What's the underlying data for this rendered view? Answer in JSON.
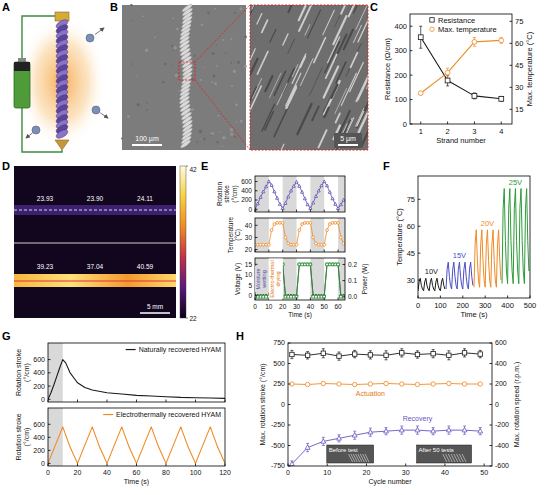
{
  "panel_letters": [
    "A",
    "B",
    "C",
    "D",
    "E",
    "F",
    "G",
    "H"
  ],
  "sem_images": {
    "scale_bars": [
      "100 µm",
      "5 µm"
    ]
  },
  "thermal_image": {
    "readings": [
      [
        "23.93",
        "23.90",
        "24.11"
      ],
      [
        "39.23",
        "37.04",
        "40.59"
      ]
    ],
    "scale_bar": "5 mm",
    "colorbar": {
      "range": [
        22,
        42
      ],
      "ticks": [
        22,
        42
      ]
    }
  },
  "chart_data": [
    {
      "type": "line",
      "x_label": "Strand number",
      "y_label": "Resistance (Ω/cm)",
      "y2_label": "Max. temperature (°C)",
      "x": [
        1,
        2,
        3,
        4
      ],
      "xlim": [
        0.6,
        4.4
      ],
      "xticks": [
        1,
        2,
        3,
        4
      ],
      "ylim": [
        0,
        450
      ],
      "yticks": [
        0,
        100,
        200,
        300,
        400
      ],
      "y2lim": [
        5,
        80
      ],
      "y2ticks": [
        15,
        30,
        45,
        60,
        75
      ],
      "legend": "upper center",
      "series": [
        {
          "name": "Resistance",
          "color": "#1a1a1a",
          "marker": "square",
          "values": [
            355,
            178,
            115,
            103
          ],
          "errors": [
            45,
            22,
            12,
            10
          ]
        },
        {
          "name": "Max. temperature",
          "color": "#f08a24",
          "marker": "circle",
          "axis": "y2",
          "values": [
            26,
            40,
            61,
            62
          ],
          "errors": [
            1,
            3,
            3,
            2
          ]
        }
      ]
    },
    {
      "type": "line",
      "y_label": "Rotation stroke (°/cm)",
      "x": [
        0,
        2,
        4,
        6,
        8,
        10,
        12,
        14,
        16,
        18,
        20,
        22,
        24,
        26,
        28,
        30,
        32,
        34,
        36,
        38,
        40,
        42,
        44,
        46,
        48,
        50,
        52,
        54,
        56,
        58,
        60,
        62,
        64
      ],
      "xlim": [
        0,
        65
      ],
      "xticks": [
        0,
        10,
        20,
        30,
        40,
        50,
        60
      ],
      "ylim": [
        -60,
        720
      ],
      "yticks": [
        0,
        200,
        400,
        600
      ],
      "tick_labels": "y",
      "shaded": [
        [
          0,
          10
        ],
        [
          20,
          30
        ],
        [
          40,
          50
        ],
        [
          60,
          65
        ]
      ],
      "series": [
        {
          "color": "#5b4fb0",
          "marker": "triangle",
          "values": [
            0,
            120,
            260,
            380,
            490,
            600,
            520,
            380,
            240,
            110,
            20,
            130,
            270,
            400,
            500,
            590,
            500,
            370,
            230,
            100,
            20,
            140,
            280,
            400,
            510,
            600,
            510,
            370,
            230,
            110,
            20,
            100,
            200
          ]
        }
      ]
    },
    {
      "type": "line",
      "y_label": "Temperature (°C)",
      "x": [
        0,
        2,
        4,
        6,
        8,
        10,
        12,
        14,
        16,
        18,
        20,
        22,
        24,
        26,
        28,
        30,
        32,
        34,
        36,
        38,
        40,
        42,
        44,
        46,
        48,
        50,
        52,
        54,
        56,
        58,
        60,
        62,
        64
      ],
      "xlim": [
        0,
        65
      ],
      "xticks": [
        0,
        10,
        20,
        30,
        40,
        50,
        60
      ],
      "ylim": [
        18,
        46
      ],
      "yticks": [
        20,
        30,
        40
      ],
      "tick_labels": "y",
      "shaded": [
        [
          0,
          10
        ],
        [
          20,
          30
        ],
        [
          40,
          50
        ],
        [
          60,
          65
        ]
      ],
      "series": [
        {
          "color": "#f08a24",
          "marker": "circle",
          "values": [
            24,
            24,
            24,
            24,
            24,
            24,
            36,
            41,
            42,
            42,
            42,
            30,
            25,
            24,
            24,
            24,
            36,
            41,
            42,
            42,
            42,
            30,
            25,
            24,
            24,
            24,
            36,
            41,
            42,
            42,
            42,
            30,
            25
          ]
        }
      ]
    },
    {
      "type": "line",
      "x_label": "Time (s)",
      "y_label": "Voltage (V)",
      "y2_label": "Power (W)",
      "x": [
        0,
        2,
        4,
        6,
        8,
        10,
        12,
        14,
        16,
        18,
        20,
        22,
        24,
        26,
        28,
        30,
        32,
        34,
        36,
        38,
        40,
        42,
        44,
        46,
        48,
        50,
        52,
        54,
        56,
        58,
        60,
        62,
        64
      ],
      "xlim": [
        0,
        65
      ],
      "xticks": [
        0,
        10,
        20,
        30,
        40,
        50,
        60
      ],
      "ylim": [
        -2,
        18
      ],
      "yticks": [
        0,
        5,
        10,
        15
      ],
      "y2lim": [
        -0.02,
        0.24
      ],
      "y2ticks": [
        {
          "value": 0,
          "label": "0.0"
        },
        0.1,
        0.2
      ],
      "shaded": [
        [
          0,
          10
        ],
        [
          20,
          30
        ],
        [
          40,
          50
        ],
        [
          60,
          65
        ]
      ],
      "annotations": [
        {
          "text": "Moisture wetting",
          "color": "#5b4fb0"
        },
        {
          "text": "Electro-thermal drying",
          "color": "#e07a14"
        }
      ],
      "series": [
        {
          "color": "#1a1a1a",
          "marker": "circle",
          "values": [
            0,
            0,
            0,
            0,
            0,
            0,
            15,
            15,
            15,
            15,
            15,
            0,
            0,
            0,
            0,
            0,
            15,
            15,
            15,
            15,
            15,
            0,
            0,
            0,
            0,
            0,
            15,
            15,
            15,
            15,
            15,
            0,
            0
          ]
        },
        {
          "color": "#2e9b3a",
          "marker": "square",
          "axis": "y2",
          "values": [
            0,
            0,
            0,
            0,
            0,
            0,
            0.2,
            0.2,
            0.2,
            0.2,
            0.2,
            0,
            0,
            0,
            0,
            0,
            0.2,
            0.2,
            0.2,
            0.2,
            0.2,
            0,
            0,
            0,
            0,
            0,
            0.2,
            0.2,
            0.2,
            0.2,
            0.2,
            0,
            0
          ]
        }
      ]
    },
    {
      "type": "line",
      "x_label": "Time (s)",
      "y_label": "Temperature (°C)",
      "xlim": [
        0,
        500
      ],
      "xticks": [
        0,
        100,
        200,
        300,
        400,
        500
      ],
      "ylim": [
        20,
        88
      ],
      "yticks": [
        30,
        45,
        60,
        75
      ],
      "series": [
        {
          "name": "10V",
          "color": "#1a1a1a",
          "x": [
            0,
            5,
            10,
            15,
            20,
            25,
            30,
            35,
            40,
            45,
            50,
            55,
            60,
            65,
            70,
            75,
            80,
            85,
            90,
            95,
            100,
            105,
            110,
            115,
            120
          ],
          "values": [
            24,
            29,
            31,
            27,
            25,
            24,
            29,
            31,
            27,
            25,
            24,
            29,
            31,
            27,
            25,
            24,
            29,
            31,
            27,
            25,
            24,
            29,
            31,
            27,
            25
          ]
        },
        {
          "name": "15V",
          "color": "#4a4ec4",
          "x": [
            125,
            130,
            135,
            140,
            145,
            150,
            155,
            160,
            165,
            170,
            175,
            180,
            185,
            190,
            195,
            200,
            205,
            210,
            215,
            220,
            225,
            230,
            235,
            240,
            245
          ],
          "values": [
            25,
            36,
            40,
            32,
            27,
            25,
            36,
            40,
            32,
            27,
            25,
            36,
            40,
            32,
            27,
            25,
            36,
            40,
            32,
            27,
            25,
            36,
            40,
            32,
            27
          ]
        },
        {
          "name": "20V",
          "color": "#f08a24",
          "x": [
            250,
            255,
            260,
            265,
            270,
            275,
            280,
            285,
            290,
            295,
            300,
            305,
            310,
            315,
            320,
            325,
            330,
            335,
            340,
            345,
            350,
            355,
            360,
            365,
            370
          ],
          "values": [
            26,
            50,
            58,
            41,
            30,
            26,
            50,
            58,
            41,
            30,
            26,
            50,
            58,
            41,
            30,
            26,
            50,
            58,
            41,
            30,
            26,
            50,
            58,
            41,
            30
          ]
        },
        {
          "name": "25V",
          "color": "#2e9b3a",
          "x": [
            375,
            380,
            385,
            390,
            395,
            400,
            405,
            410,
            415,
            420,
            425,
            430,
            435,
            440,
            445,
            450,
            455,
            460,
            465,
            470,
            475,
            480,
            485,
            490,
            495
          ],
          "values": [
            28,
            70,
            81,
            52,
            35,
            28,
            70,
            81,
            52,
            35,
            28,
            70,
            81,
            52,
            35,
            28,
            70,
            81,
            52,
            35,
            28,
            70,
            81,
            52,
            35
          ]
        }
      ]
    },
    {
      "type": "line",
      "y_label": "Rotation stroke (°/cm)",
      "x": [
        0,
        2,
        4,
        6,
        8,
        10,
        12,
        15,
        20,
        25,
        30,
        40,
        50,
        60,
        70,
        80,
        90,
        100,
        110,
        120
      ],
      "xlim": [
        0,
        120
      ],
      "xticks": [
        0,
        20,
        40,
        60,
        80,
        100,
        120
      ],
      "ylim": [
        -40,
        850
      ],
      "yticks": [
        0,
        200,
        400,
        600
      ],
      "tick_labels": "y",
      "shaded": [
        [
          0,
          10
        ]
      ],
      "legend": "upper right",
      "series": [
        {
          "name": "Naturally recovered HYAM",
          "color": "#1a1a1a",
          "values": [
            0,
            100,
            220,
            350,
            480,
            600,
            550,
            400,
            250,
            180,
            140,
            100,
            80,
            60,
            50,
            40,
            30,
            25,
            20,
            15
          ]
        }
      ]
    },
    {
      "type": "line",
      "x_label": "Time (s)",
      "y_label": "Rotation stroke (°/cm)",
      "x": [
        0,
        5,
        10,
        15,
        20,
        25,
        30,
        35,
        40,
        45,
        50,
        55,
        60,
        65,
        70,
        75,
        80,
        85,
        90,
        95,
        100,
        105,
        110,
        115,
        120
      ],
      "xlim": [
        0,
        120
      ],
      "xticks": [
        0,
        20,
        40,
        60,
        80,
        100,
        120
      ],
      "ylim": [
        -40,
        850
      ],
      "yticks": [
        0,
        200,
        400,
        600
      ],
      "shaded": [
        [
          0,
          10
        ]
      ],
      "legend": "upper right",
      "series": [
        {
          "name": "Electrothermally recovered HYAM",
          "color": "#f08a24",
          "values": [
            0,
            280,
            560,
            250,
            0,
            280,
            560,
            250,
            0,
            280,
            560,
            250,
            0,
            280,
            560,
            250,
            0,
            280,
            560,
            250,
            0,
            280,
            560,
            250,
            0
          ]
        }
      ]
    },
    {
      "type": "line",
      "x_label": "Cycle number",
      "y_label": "Max. rotation stroke (°/cm)",
      "y2_label": "Max. rotation speed (r.p.m.)",
      "x": [
        1,
        5,
        9,
        13,
        17,
        21,
        25,
        29,
        33,
        37,
        41,
        45,
        49
      ],
      "xlim": [
        0,
        52
      ],
      "xticks": [
        0,
        10,
        20,
        30,
        40,
        50
      ],
      "ylim": [
        -750,
        750
      ],
      "yticks": [
        -750,
        -500,
        -250,
        0,
        250,
        500,
        750
      ],
      "y2lim": [
        -600,
        600
      ],
      "y2ticks": [
        -600,
        -400,
        -200,
        0,
        200,
        400,
        600
      ],
      "annotations": [
        {
          "text": "Actuation",
          "color": "#e07a14"
        },
        {
          "text": "Recovery",
          "color": "#6a55c2"
        }
      ],
      "insets": [
        "Before test",
        "After 50 tests"
      ],
      "series": [
        {
          "color": "#1a1a1a",
          "marker": "square",
          "values": [
            610,
            600,
            625,
            590,
            615,
            605,
            600,
            630,
            610,
            620,
            600,
            630,
            615
          ],
          "errors": [
            50,
            45,
            55,
            50,
            45,
            50,
            55,
            50,
            45,
            50,
            55,
            50,
            45
          ]
        },
        {
          "color": "#f08a24",
          "marker": "circle",
          "axis": "y2",
          "values": [
            200,
            195,
            205,
            200,
            195,
            200,
            205,
            200,
            195,
            200,
            205,
            200,
            200
          ],
          "errors": [
            15,
            12,
            15,
            14,
            12,
            15,
            14,
            15,
            12,
            15,
            14,
            15,
            12
          ]
        },
        {
          "color": "#6a55c2",
          "marker": "triangle",
          "axis": "y2",
          "values": [
            -580,
            -420,
            -360,
            -330,
            -300,
            -270,
            -260,
            -250,
            -250,
            -260,
            -250,
            -250,
            -260
          ],
          "errors": [
            30,
            40,
            40,
            35,
            40,
            40,
            35,
            40,
            40,
            35,
            40,
            40,
            35
          ]
        }
      ]
    }
  ]
}
